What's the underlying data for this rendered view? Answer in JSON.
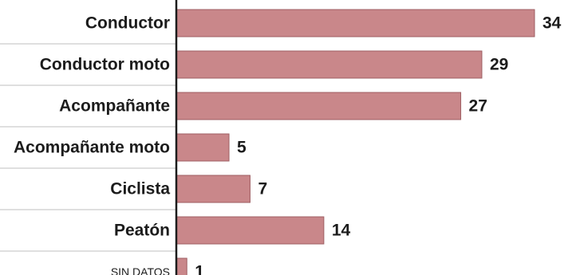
{
  "chart_data": {
    "type": "bar",
    "orientation": "horizontal",
    "categories": [
      "Conductor",
      "Conductor moto",
      "Acompañante",
      "Acompañante moto",
      "Ciclista",
      "Peatón",
      "SIN DATOS"
    ],
    "values": [
      34,
      29,
      27,
      5,
      7,
      14,
      1
    ],
    "title": "",
    "xlabel": "",
    "ylabel": "",
    "xlim": [
      0,
      34
    ],
    "grid": false,
    "legend": "none",
    "bar_color": "#c9878a",
    "bar_border_color": "#9e5e62",
    "axis_color": "#1c1c1c",
    "separator_color": "#bfbfbf"
  }
}
